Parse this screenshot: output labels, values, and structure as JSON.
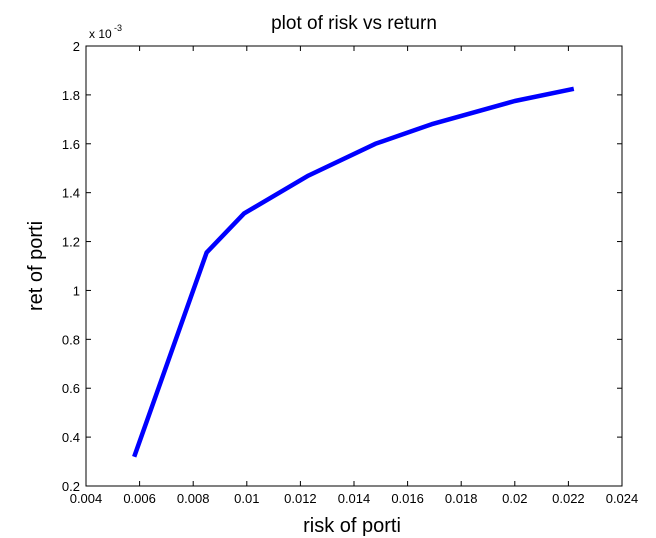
{
  "chart_data": {
    "type": "line",
    "title": "plot of risk vs return",
    "xlabel": "risk of porti",
    "ylabel": "ret of porti",
    "xlim": [
      0.004,
      0.024
    ],
    "ylim": [
      0.2,
      2.0
    ],
    "y_scale_note": {
      "base": "x 10",
      "exponent": "-3"
    },
    "xticks": [
      0.004,
      0.006,
      0.008,
      0.01,
      0.012,
      0.014,
      0.016,
      0.018,
      0.02,
      0.022,
      0.024
    ],
    "xtick_labels": [
      "0.004",
      "0.006",
      "0.008",
      "0.01",
      "0.012",
      "0.014",
      "0.016",
      "0.018",
      "0.02",
      "0.022",
      "0.024"
    ],
    "yticks": [
      0.2,
      0.4,
      0.6,
      0.8,
      1.0,
      1.2,
      1.4,
      1.6,
      1.8,
      2.0
    ],
    "ytick_labels": [
      "0.2",
      "0.4",
      "0.6",
      "0.8",
      "1",
      "1.2",
      "1.4",
      "1.6",
      "1.8",
      "2"
    ],
    "grid": false,
    "line_color": "#0000ff",
    "series": [
      {
        "x": [
          0.0058,
          0.0085,
          0.0099,
          0.0123,
          0.0148,
          0.0169,
          0.02,
          0.0222
        ],
        "y": [
          0.32,
          1.155,
          1.315,
          1.47,
          1.6,
          1.68,
          1.775,
          1.825
        ]
      }
    ]
  }
}
